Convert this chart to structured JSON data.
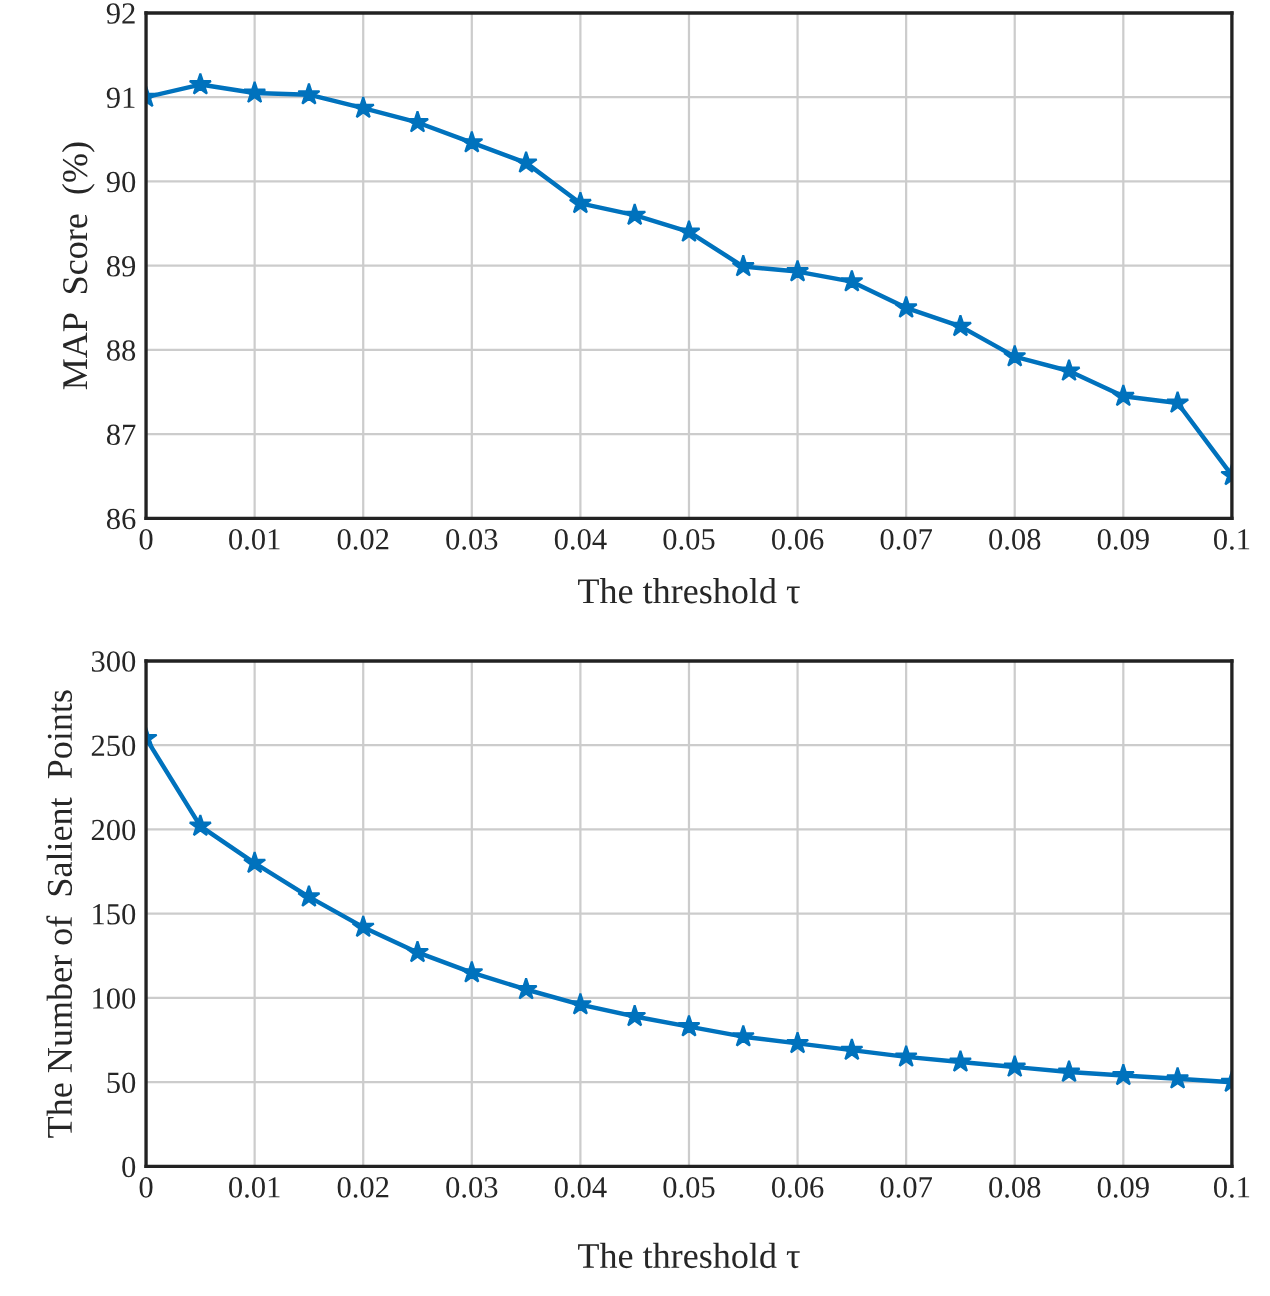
{
  "chart_data": [
    {
      "type": "line",
      "xlabel": "The threshold τ",
      "ylabel": "MAP  Score  (%)",
      "x": [
        0,
        0.005,
        0.01,
        0.015,
        0.02,
        0.025,
        0.03,
        0.035,
        0.04,
        0.045,
        0.05,
        0.055,
        0.06,
        0.065,
        0.07,
        0.075,
        0.08,
        0.085,
        0.09,
        0.095,
        0.1
      ],
      "series": [
        {
          "color": "#0072bd",
          "values": [
            91.0,
            91.15,
            91.05,
            91.03,
            90.87,
            90.7,
            90.46,
            90.22,
            89.74,
            89.6,
            89.4,
            88.99,
            88.93,
            88.81,
            88.5,
            88.28,
            87.92,
            87.75,
            87.45,
            87.37,
            86.51
          ]
        }
      ],
      "xlim": [
        0,
        0.1
      ],
      "ylim": [
        86,
        92
      ],
      "xticks": [
        0,
        0.01,
        0.02,
        0.03,
        0.04,
        0.05,
        0.06,
        0.07,
        0.08,
        0.09,
        0.1
      ],
      "yticks": [
        86,
        87,
        88,
        89,
        90,
        91,
        92
      ],
      "grid": true,
      "marker": "star",
      "line_style": "solid"
    },
    {
      "type": "line",
      "xlabel": "The threshold τ",
      "ylabel": "The Number of  Salient  Points",
      "x": [
        0,
        0.005,
        0.01,
        0.015,
        0.02,
        0.025,
        0.03,
        0.035,
        0.04,
        0.045,
        0.05,
        0.055,
        0.06,
        0.065,
        0.07,
        0.075,
        0.08,
        0.085,
        0.09,
        0.095,
        0.1
      ],
      "series": [
        {
          "color": "#0072bd",
          "values": [
            254,
            202,
            180,
            160,
            142,
            127,
            115,
            105,
            96,
            89,
            83,
            77,
            73,
            69,
            65,
            62,
            59,
            56,
            54,
            52,
            50
          ]
        }
      ],
      "xlim": [
        0,
        0.1
      ],
      "ylim": [
        0,
        300
      ],
      "xticks": [
        0,
        0.01,
        0.02,
        0.03,
        0.04,
        0.05,
        0.06,
        0.07,
        0.08,
        0.09,
        0.1
      ],
      "yticks": [
        0,
        50,
        100,
        150,
        200,
        250,
        300
      ],
      "grid": true,
      "marker": "star",
      "line_style": "solid"
    }
  ]
}
